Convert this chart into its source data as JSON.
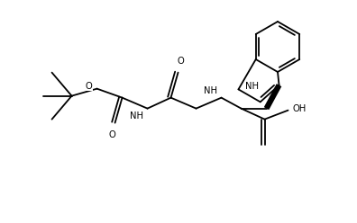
{
  "bg_color": "#ffffff",
  "lw": 1.3,
  "fs": 7.2,
  "figsize": [
    3.96,
    2.48
  ],
  "dpi": 100,
  "xlim": [
    0,
    396
  ],
  "ylim": [
    0,
    248
  ]
}
